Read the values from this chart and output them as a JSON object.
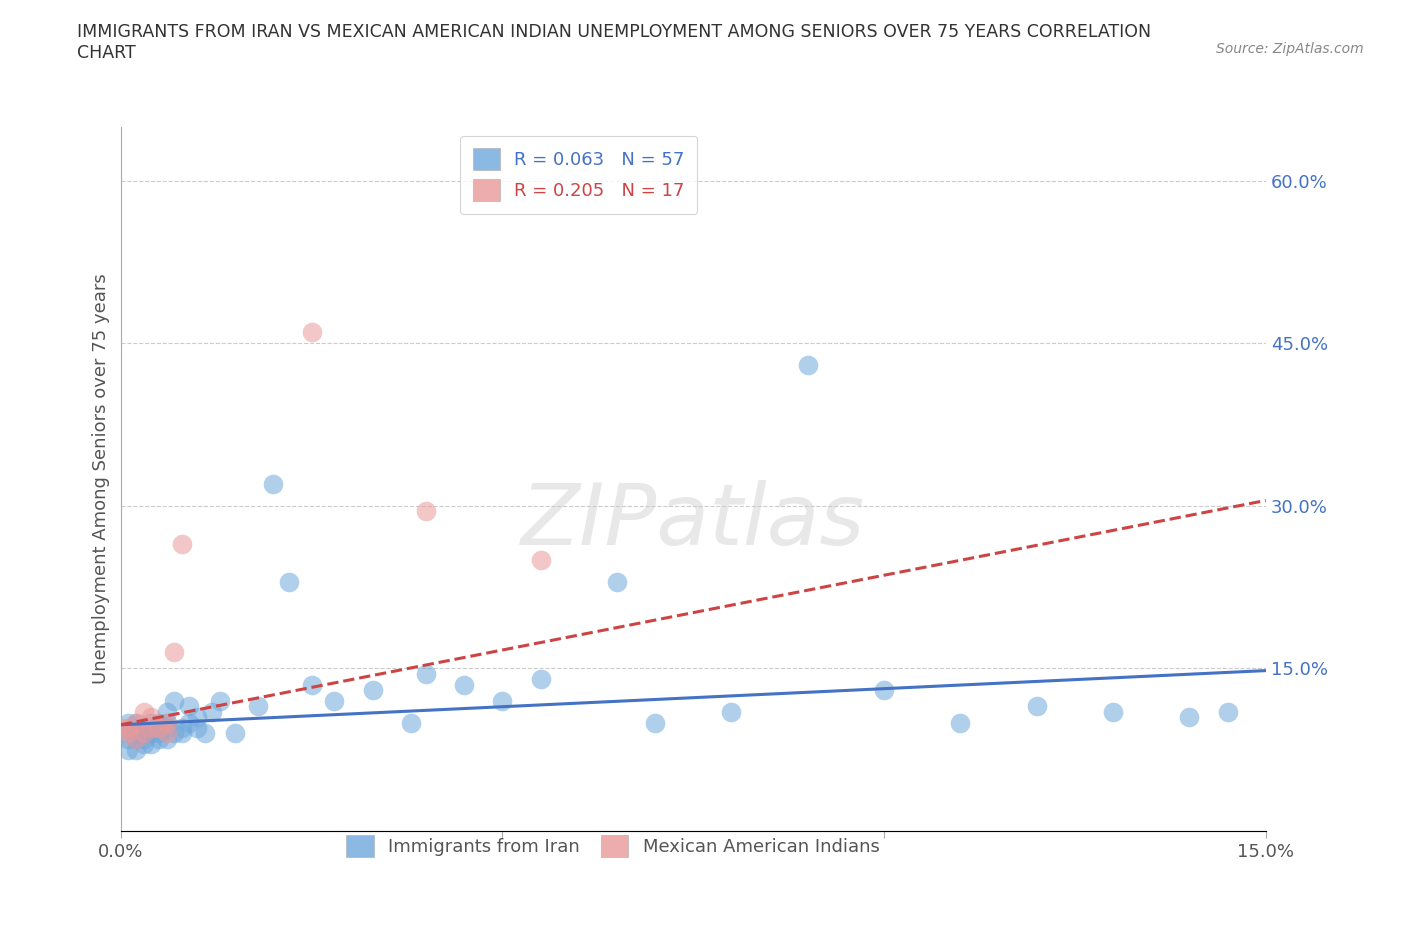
{
  "title": "IMMIGRANTS FROM IRAN VS MEXICAN AMERICAN INDIAN UNEMPLOYMENT AMONG SENIORS OVER 75 YEARS CORRELATION\nCHART",
  "source": "Source: ZipAtlas.com",
  "ylabel": "Unemployment Among Seniors over 75 years",
  "xlim": [
    0.0,
    0.15
  ],
  "ylim": [
    0.0,
    0.65
  ],
  "xticks": [
    0.0,
    0.05,
    0.1,
    0.15
  ],
  "xticklabels": [
    "0.0%",
    "",
    "",
    "15.0%"
  ],
  "yticks_right": [
    0.15,
    0.3,
    0.45,
    0.6
  ],
  "yticks_right_labels": [
    "15.0%",
    "30.0%",
    "45.0%",
    "60.0%"
  ],
  "iran_color": "#6fa8dc",
  "mexican_color": "#ea9999",
  "trend_iran_color": "#4472c4",
  "trend_mexican_color": "#cc4444",
  "legend_R_iran": "R = 0.063",
  "legend_N_iran": "N = 57",
  "legend_R_mexican": "R = 0.205",
  "legend_N_mexican": "N = 17",
  "iran_trend_x0": 0.0,
  "iran_trend_y0": 0.098,
  "iran_trend_x1": 0.15,
  "iran_trend_y1": 0.148,
  "mex_trend_x0": 0.0,
  "mex_trend_y0": 0.098,
  "mex_trend_x1": 0.15,
  "mex_trend_y1": 0.305,
  "watermark": "ZIPatlas",
  "background_color": "#ffffff",
  "grid_color": "#cccccc",
  "iran_x": [
    0.0,
    0.001,
    0.001,
    0.001,
    0.002,
    0.002,
    0.002,
    0.002,
    0.002,
    0.003,
    0.003,
    0.003,
    0.003,
    0.004,
    0.004,
    0.004,
    0.004,
    0.005,
    0.005,
    0.005,
    0.006,
    0.006,
    0.006,
    0.006,
    0.007,
    0.007,
    0.008,
    0.008,
    0.009,
    0.009,
    0.01,
    0.01,
    0.011,
    0.012,
    0.013,
    0.015,
    0.018,
    0.02,
    0.022,
    0.025,
    0.028,
    0.033,
    0.038,
    0.04,
    0.045,
    0.05,
    0.055,
    0.065,
    0.07,
    0.08,
    0.09,
    0.1,
    0.11,
    0.12,
    0.13,
    0.14,
    0.145
  ],
  "iran_y": [
    0.09,
    0.085,
    0.1,
    0.075,
    0.09,
    0.085,
    0.095,
    0.075,
    0.1,
    0.09,
    0.095,
    0.085,
    0.08,
    0.09,
    0.1,
    0.08,
    0.095,
    0.09,
    0.1,
    0.085,
    0.095,
    0.1,
    0.085,
    0.11,
    0.12,
    0.09,
    0.095,
    0.09,
    0.1,
    0.115,
    0.105,
    0.095,
    0.09,
    0.11,
    0.12,
    0.09,
    0.115,
    0.32,
    0.23,
    0.135,
    0.12,
    0.13,
    0.1,
    0.145,
    0.135,
    0.12,
    0.14,
    0.23,
    0.1,
    0.11,
    0.43,
    0.13,
    0.1,
    0.115,
    0.11,
    0.105,
    0.11
  ],
  "mexican_x": [
    0.0,
    0.001,
    0.001,
    0.002,
    0.002,
    0.003,
    0.003,
    0.004,
    0.004,
    0.005,
    0.006,
    0.006,
    0.007,
    0.008,
    0.025,
    0.04,
    0.055
  ],
  "mexican_y": [
    0.095,
    0.09,
    0.095,
    0.1,
    0.085,
    0.11,
    0.09,
    0.105,
    0.095,
    0.095,
    0.1,
    0.09,
    0.165,
    0.265,
    0.46,
    0.295,
    0.25
  ]
}
